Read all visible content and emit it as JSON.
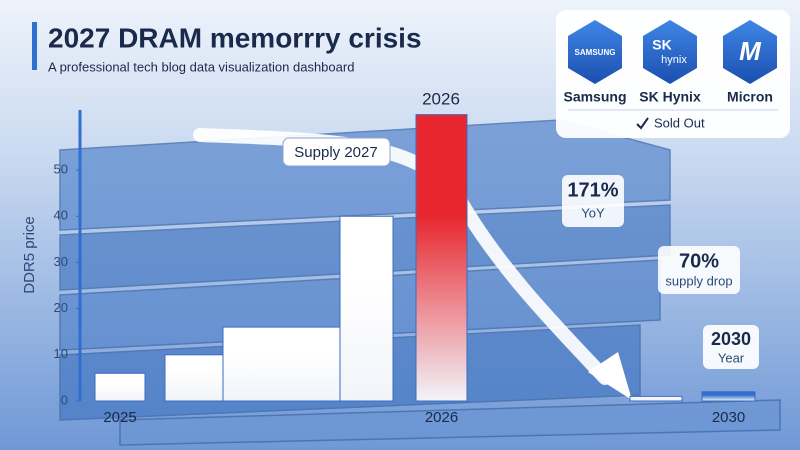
{
  "header": {
    "title": "2027 DRAM memorrry crisis",
    "subtitle": "A professional tech blog data visualization dashboard"
  },
  "chart_data": {
    "type": "bar",
    "y_label": "DDR5 price",
    "categories": [
      "2025",
      null,
      null,
      null,
      "2026",
      null,
      "2030"
    ],
    "values": [
      6,
      10,
      16,
      40,
      62,
      1,
      2
    ],
    "bar_colors": [
      "#ffffff",
      "#ffffff",
      "#ffffff",
      "#ffffff",
      "#e8262e",
      "#f4f6fb",
      "#2f6fd0"
    ],
    "ylim": [
      0,
      63
    ],
    "yticks": [
      0,
      10,
      20,
      30,
      40,
      50
    ],
    "annotations": {
      "peak": "2026",
      "supply": "Supply 2027",
      "yoy_value": "171%",
      "yoy_label": "YoY",
      "drop_value": "70%",
      "drop_label": "supply drop",
      "end_value": "2030",
      "end_label": "Year"
    }
  },
  "panel": {
    "logos": [
      "SAMSUNG",
      "SK",
      "hynix",
      "M"
    ],
    "makers": [
      "Samsung",
      "SK Hynix",
      "Micron"
    ],
    "status": "Sold Out"
  }
}
